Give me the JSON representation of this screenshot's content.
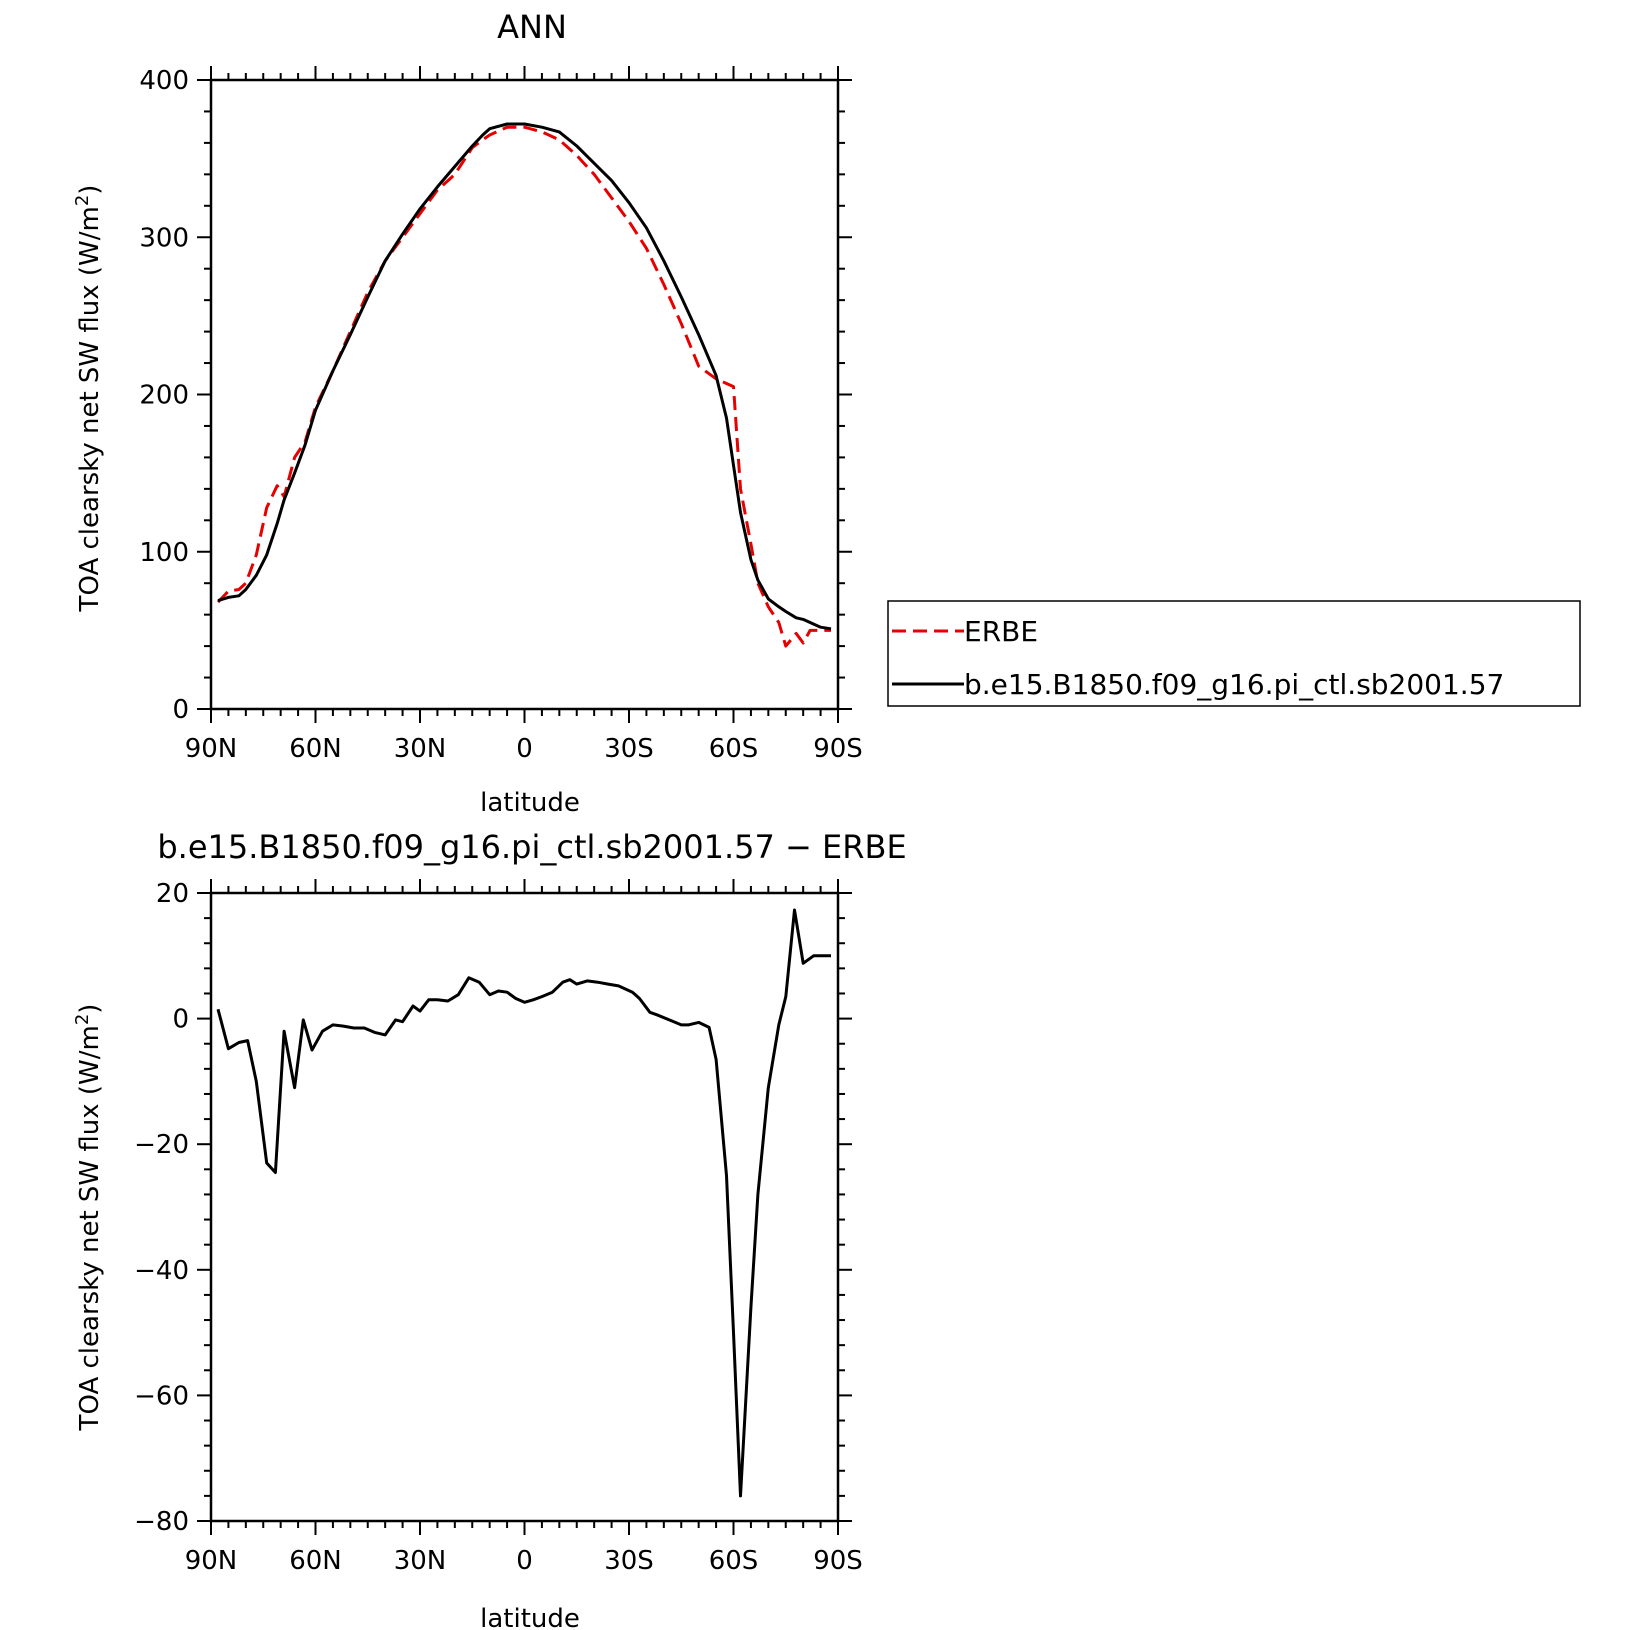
{
  "chart_data": [
    {
      "type": "line",
      "title": "ANN",
      "xlabel": "latitude",
      "ylabel": "TOA clearsky net SW flux (W/m",
      "ylabel_sup": "2",
      "ylabel_close": ")",
      "xlim": [
        90,
        -90
      ],
      "ylim": [
        0,
        400
      ],
      "x_ticks": [
        90,
        60,
        30,
        0,
        -30,
        -60,
        -90
      ],
      "x_tick_labels": [
        "90N",
        "60N",
        "30N",
        "0",
        "30S",
        "60S",
        "90S"
      ],
      "y_ticks": [
        0,
        100,
        200,
        300,
        400
      ],
      "y_tick_labels": [
        "0",
        "100",
        "200",
        "300",
        "400"
      ],
      "legend_position": "right",
      "series": [
        {
          "name": "ERBE",
          "color": "#e60000",
          "dash": "dashed",
          "x": [
            88,
            85,
            82,
            80,
            77,
            74,
            71,
            69,
            66,
            63,
            60,
            55,
            50,
            45,
            40,
            35,
            30,
            25,
            20,
            15,
            12,
            10,
            5,
            0,
            -5,
            -10,
            -15,
            -20,
            -25,
            -30,
            -35,
            -40,
            -45,
            -50,
            -55,
            -58,
            -60,
            -62,
            -65,
            -67,
            -70,
            -73,
            -75,
            -78,
            -80,
            -82,
            -85,
            -88
          ],
          "y": [
            68,
            75,
            76,
            80,
            98,
            128,
            142,
            135,
            160,
            170,
            192,
            215,
            240,
            265,
            285,
            300,
            315,
            330,
            340,
            357,
            362,
            365,
            370,
            370,
            367,
            362,
            352,
            340,
            325,
            310,
            293,
            270,
            245,
            218,
            210,
            207,
            205,
            140,
            105,
            80,
            65,
            55,
            40,
            48,
            42,
            50,
            50,
            50
          ],
          "note_trim": 0
        },
        {
          "name": "b.e15.B1850.f09_g16.pi_ctl.sb2001.57",
          "color": "#000000",
          "dash": "solid",
          "x": [
            88,
            85,
            82,
            80,
            77,
            74,
            71,
            69,
            66,
            63,
            60,
            55,
            50,
            45,
            40,
            35,
            30,
            25,
            20,
            15,
            12,
            10,
            5,
            0,
            -5,
            -10,
            -15,
            -20,
            -25,
            -30,
            -35,
            -40,
            -45,
            -50,
            -55,
            -58,
            -60,
            -62,
            -65,
            -67,
            -70,
            -73,
            -75,
            -78,
            -80,
            -82,
            -85,
            -88
          ],
          "y": [
            69,
            71,
            72,
            76,
            85,
            98,
            118,
            133,
            150,
            168,
            190,
            215,
            238,
            262,
            285,
            302,
            318,
            332,
            345,
            358,
            365,
            369,
            372,
            372,
            370,
            367,
            358,
            347,
            336,
            322,
            306,
            285,
            262,
            238,
            212,
            185,
            155,
            125,
            95,
            82,
            70,
            65,
            62,
            58,
            57,
            55,
            52,
            51
          ]
        }
      ]
    },
    {
      "type": "line",
      "title": "b.e15.B1850.f09_g16.pi_ctl.sb2001.57 − ERBE",
      "xlabel": "latitude",
      "ylabel": "TOA clearsky net SW flux (W/m",
      "ylabel_sup": "2",
      "ylabel_close": ")",
      "xlim": [
        90,
        -90
      ],
      "ylim": [
        -80,
        20
      ],
      "x_ticks": [
        90,
        60,
        30,
        0,
        -30,
        -60,
        -90
      ],
      "x_tick_labels": [
        "90N",
        "60N",
        "30N",
        "0",
        "30S",
        "60S",
        "90S"
      ],
      "y_ticks": [
        -80,
        -60,
        -40,
        -20,
        0,
        20
      ],
      "y_tick_labels": [
        "−80",
        "−60",
        "−40",
        "−20",
        "0",
        "20"
      ],
      "series": [
        {
          "name": "",
          "color": "#000000",
          "dash": "solid",
          "x": [
            88,
            85,
            82,
            79.5,
            77,
            74,
            71.5,
            69,
            66,
            63.5,
            61,
            58,
            55,
            52,
            49,
            46,
            43,
            40,
            37,
            35,
            32,
            30,
            27.5,
            25,
            22,
            19,
            16,
            13,
            10,
            7.5,
            5,
            2.5,
            0,
            -2.5,
            -5,
            -8,
            -11,
            -13,
            -15,
            -18,
            -21,
            -24,
            -27,
            -31,
            -33,
            -36,
            -38,
            -42,
            -45,
            -47,
            -50,
            -53,
            -55,
            -58,
            -60,
            -62,
            -65,
            -67,
            -70,
            -73,
            -75,
            -77.5,
            -80,
            -83,
            -85,
            -88
          ],
          "y": [
            1.5,
            -4.8,
            -3.8,
            -3.5,
            -10,
            -23,
            -24.5,
            -2,
            -11,
            -0.2,
            -5,
            -2,
            -1,
            -1.2,
            -1.5,
            -1.5,
            -2.2,
            -2.6,
            -0.2,
            -0.5,
            2,
            1.2,
            3,
            3,
            2.8,
            3.8,
            6.5,
            5.8,
            3.8,
            4.4,
            4.2,
            3.2,
            2.6,
            3,
            3.5,
            4.2,
            5.8,
            6.2,
            5.5,
            6,
            5.8,
            5.5,
            5.2,
            4.2,
            3.2,
            1,
            0.6,
            -0.3,
            -1,
            -1,
            -0.6,
            -1.4,
            -6.5,
            -25,
            -50,
            -76,
            -46,
            -28,
            -11,
            -1,
            3.5,
            17.3,
            8.8,
            10,
            10,
            10
          ]
        }
      ]
    }
  ]
}
